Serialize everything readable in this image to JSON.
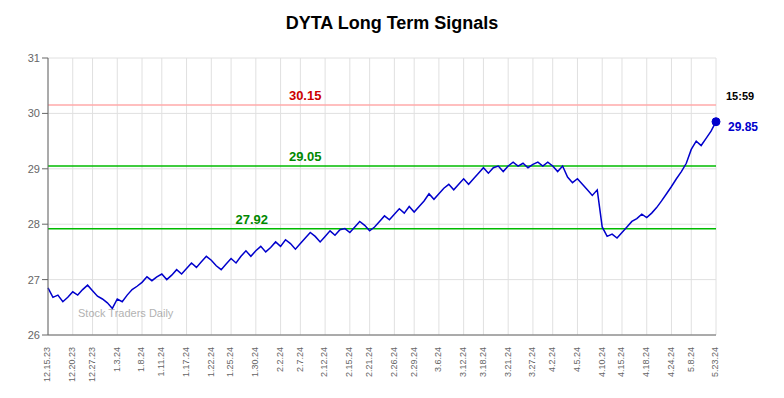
{
  "chart_data": {
    "type": "line",
    "title": "DYTA Long Term Signals",
    "categories": [
      "12.15.23",
      null,
      null,
      null,
      null,
      "12.20.23",
      null,
      null,
      null,
      "12.27.23",
      null,
      null,
      null,
      null,
      "1.3.24",
      null,
      null,
      null,
      null,
      "1.8.24",
      null,
      null,
      null,
      "1.11.24",
      null,
      null,
      null,
      null,
      "1.17.24",
      null,
      null,
      null,
      null,
      "1.22.24",
      null,
      null,
      null,
      "1.25.24",
      null,
      null,
      null,
      null,
      "1.30.24",
      null,
      null,
      null,
      null,
      "2.2.24",
      null,
      null,
      null,
      "2.7.24",
      null,
      null,
      null,
      null,
      "2.12.24",
      null,
      null,
      null,
      null,
      "2.15.24",
      null,
      null,
      null,
      "2.21.24",
      null,
      null,
      null,
      null,
      "2.26.24",
      null,
      null,
      null,
      "2.29.24",
      null,
      null,
      null,
      null,
      "3.6.24",
      null,
      null,
      null,
      null,
      "3.12.24",
      null,
      null,
      null,
      "3.18.24",
      null,
      null,
      null,
      null,
      "3.21.24",
      null,
      null,
      null,
      null,
      "3.27.24",
      null,
      null,
      null,
      "4.2.24",
      null,
      null,
      null,
      null,
      "4.5.24",
      null,
      null,
      null,
      null,
      "4.10.24",
      null,
      null,
      null,
      "4.15.24",
      null,
      null,
      null,
      null,
      "4.18.24",
      null,
      null,
      null,
      null,
      "4.24.24",
      null,
      null,
      null,
      "5.8.24",
      null,
      null,
      null,
      null,
      "5.23.24"
    ],
    "values": [
      26.85,
      26.68,
      26.72,
      26.6,
      26.68,
      26.78,
      26.72,
      26.82,
      26.9,
      26.8,
      26.7,
      26.65,
      26.58,
      26.48,
      26.65,
      26.6,
      26.72,
      26.82,
      26.88,
      26.95,
      27.05,
      26.98,
      27.05,
      27.1,
      27.0,
      27.08,
      27.18,
      27.1,
      27.2,
      27.3,
      27.22,
      27.32,
      27.42,
      27.35,
      27.25,
      27.18,
      27.28,
      27.38,
      27.3,
      27.42,
      27.52,
      27.42,
      27.52,
      27.6,
      27.5,
      27.58,
      27.68,
      27.6,
      27.72,
      27.65,
      27.55,
      27.65,
      27.75,
      27.85,
      27.78,
      27.68,
      27.78,
      27.88,
      27.8,
      27.9,
      27.92,
      27.85,
      27.95,
      28.05,
      27.98,
      27.88,
      27.95,
      28.05,
      28.15,
      28.08,
      28.18,
      28.28,
      28.2,
      28.32,
      28.22,
      28.32,
      28.42,
      28.55,
      28.45,
      28.55,
      28.65,
      28.72,
      28.62,
      28.72,
      28.82,
      28.72,
      28.82,
      28.92,
      29.02,
      28.92,
      29.02,
      29.05,
      28.95,
      29.05,
      29.12,
      29.05,
      29.1,
      29.02,
      29.08,
      29.12,
      29.05,
      29.12,
      29.05,
      28.95,
      29.05,
      28.85,
      28.75,
      28.82,
      28.72,
      28.62,
      28.52,
      28.62,
      27.95,
      27.78,
      27.82,
      27.75,
      27.85,
      27.95,
      28.05,
      28.1,
      28.18,
      28.12,
      28.2,
      28.3,
      28.42,
      28.55,
      28.68,
      28.82,
      28.95,
      29.1,
      29.35,
      29.5,
      29.42,
      29.55,
      29.68,
      29.85
    ],
    "color": "#0000cc",
    "ylim": [
      26,
      31
    ],
    "yticks": [
      26,
      27,
      28,
      29,
      30,
      31
    ],
    "grid": true,
    "reference_lines": [
      {
        "value": 30.15,
        "color": "#ffaaaa",
        "label": "30.15",
        "label_color": "#cc0000"
      },
      {
        "value": 29.05,
        "color": "#00bb00",
        "label": "29.05",
        "label_color": "#008800"
      },
      {
        "value": 27.92,
        "color": "#00bb00",
        "label": "27.92",
        "label_color": "#008800"
      }
    ],
    "annotations": [
      {
        "text": "15:59",
        "color": "black"
      },
      {
        "text": "29.85",
        "color": "#0000cc"
      },
      {
        "text": "Stock Traders Daily",
        "color": "gray"
      }
    ]
  }
}
